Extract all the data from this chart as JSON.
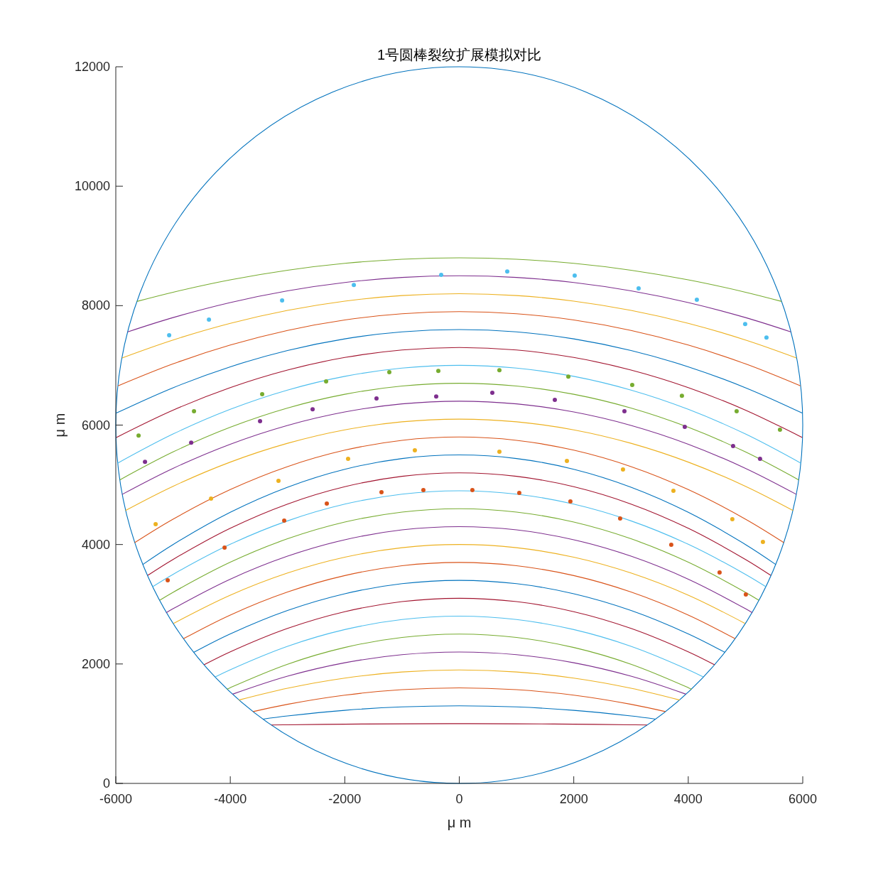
{
  "chart_data": {
    "type": "scatter",
    "title": "1号圆棒裂纹扩展模拟对比",
    "xlabel": "μ m",
    "ylabel": "μ m",
    "xlim": [
      -6000,
      6000
    ],
    "ylim": [
      0,
      12000
    ],
    "xticks": [
      -6000,
      -4000,
      -2000,
      0,
      2000,
      4000,
      6000
    ],
    "yticks": [
      0,
      2000,
      4000,
      6000,
      8000,
      10000,
      12000
    ],
    "grid": false,
    "series": [
      {
        "type": "line",
        "color": "#a2142f",
        "x": [
          -3280,
          -3000,
          -2000,
          -1000,
          0,
          1000,
          2000,
          3000,
          3280
        ],
        "values": [
          978,
          982,
          992,
          998,
          1000,
          998,
          992,
          982,
          978
        ]
      },
      {
        "type": "line",
        "color": "#0072bd",
        "x": [
          -3430,
          -3000,
          -2000,
          -1000,
          0,
          1000,
          2000,
          3000,
          3430
        ],
        "values": [
          1076,
          1129,
          1224,
          1281,
          1300,
          1281,
          1224,
          1129,
          1076
        ]
      },
      {
        "type": "line",
        "color": "#d95319",
        "x": [
          -3600,
          -3000,
          -2000,
          -1000,
          0,
          1000,
          2000,
          3000,
          3600
        ],
        "values": [
          1203,
          1325,
          1478,
          1569,
          1600,
          1569,
          1478,
          1325,
          1203
        ]
      },
      {
        "type": "line",
        "color": "#edb120",
        "x": [
          -3850,
          -3000,
          -2000,
          -1000,
          0,
          1000,
          2000,
          3000,
          3850
        ],
        "values": [
          1396,
          1594,
          1764,
          1866,
          1900,
          1866,
          1764,
          1594,
          1396
        ]
      },
      {
        "type": "line",
        "color": "#7e2f8e",
        "x": [
          -3960,
          -3000,
          -2000,
          -1000,
          0,
          1000,
          2000,
          3000,
          3960
        ],
        "values": [
          1494,
          1795,
          2020,
          2155,
          2200,
          2155,
          2020,
          1795,
          1494
        ]
      },
      {
        "type": "line",
        "color": "#77ac30",
        "x": [
          -4060,
          -4000,
          -3000,
          -2000,
          -1000,
          0,
          1000,
          2000,
          3000,
          4000,
          4060
        ],
        "values": [
          1577,
          1604,
          1996,
          2276,
          2444,
          2500,
          2444,
          2276,
          1996,
          1604,
          1577
        ]
      },
      {
        "type": "line",
        "color": "#4dbeee",
        "x": [
          -4260,
          -4000,
          -3000,
          -2000,
          -1000,
          0,
          1000,
          2000,
          3000,
          4000,
          4260
        ],
        "values": [
          1784,
          1904,
          2296,
          2576,
          2744,
          2800,
          2744,
          2576,
          2296,
          1904,
          1784
        ]
      },
      {
        "type": "line",
        "color": "#a2142f",
        "x": [
          -4460,
          -4000,
          -3000,
          -2000,
          -1000,
          0,
          1000,
          2000,
          3000,
          4000,
          4460
        ],
        "values": [
          1986,
          2204,
          2596,
          2876,
          3044,
          3100,
          3044,
          2876,
          2596,
          2204,
          1986
        ]
      },
      {
        "type": "line",
        "color": "#0072bd",
        "x": [
          -4640,
          -4000,
          -3000,
          -2000,
          -1000,
          0,
          1000,
          2000,
          3000,
          4000,
          4640
        ],
        "values": [
          2194,
          2504,
          2896,
          3176,
          3344,
          3400,
          3344,
          3176,
          2896,
          2504,
          2194
        ]
      },
      {
        "type": "line",
        "color": "#d95319",
        "x": [
          -4820,
          -4000,
          -3000,
          -2000,
          -1000,
          0,
          1000,
          2000,
          3000,
          4000,
          4820
        ],
        "values": [
          2422,
          2820,
          3205,
          3480,
          3645,
          3700,
          3645,
          3480,
          3205,
          2820,
          2422
        ]
      },
      {
        "type": "line",
        "color": "#edb120",
        "x": [
          -4990,
          -4000,
          -3000,
          -2000,
          -1000,
          0,
          1000,
          2000,
          3000,
          4000,
          4990
        ],
        "values": [
          2680,
          3152,
          3523,
          3788,
          3947,
          4000,
          3947,
          3788,
          3523,
          3152,
          2680
        ]
      },
      {
        "type": "line",
        "color": "#7e2f8e",
        "x": [
          -5120,
          -5000,
          -4000,
          -3000,
          -2000,
          -1000,
          0,
          1000,
          2000,
          3000,
          4000,
          5000,
          5120
        ],
        "values": [
          2858,
          2925,
          3420,
          3805,
          4080,
          4245,
          4300,
          4245,
          4080,
          3805,
          3420,
          2925,
          2858
        ]
      },
      {
        "type": "line",
        "color": "#77ac30",
        "x": [
          -5230,
          -5000,
          -4000,
          -3000,
          -2000,
          -1000,
          0,
          1000,
          2000,
          3000,
          4000,
          5000,
          5230
        ],
        "values": [
          3068,
          3200,
          3704,
          4096,
          4376,
          4544,
          4600,
          4544,
          4376,
          4096,
          3704,
          3200,
          3068
        ]
      },
      {
        "type": "line",
        "color": "#4dbeee",
        "x": [
          -5360,
          -5000,
          -4000,
          -3000,
          -2000,
          -1000,
          0,
          1000,
          2000,
          3000,
          4000,
          5000,
          5360
        ],
        "values": [
          3291,
          3500,
          4004,
          4396,
          4676,
          4844,
          4900,
          4844,
          4676,
          4396,
          4004,
          3500,
          3291
        ]
      },
      {
        "type": "line",
        "color": "#a2142f",
        "x": [
          -5440,
          -5000,
          -4000,
          -3000,
          -2000,
          -1000,
          0,
          1000,
          2000,
          3000,
          4000,
          5000,
          5440
        ],
        "values": [
          3484,
          3750,
          4272,
          4678,
          4968,
          5142,
          5200,
          5142,
          4968,
          4678,
          4272,
          3750,
          3484
        ]
      },
      {
        "type": "line",
        "color": "#0072bd",
        "x": [
          -5530,
          -5000,
          -4000,
          -3000,
          -2000,
          -1000,
          0,
          1000,
          2000,
          3000,
          4000,
          5000,
          5530
        ],
        "values": [
          3665,
          4000,
          4540,
          4960,
          5260,
          5440,
          5500,
          5440,
          5260,
          4960,
          4540,
          4000,
          3665
        ]
      },
      {
        "type": "line",
        "color": "#d95319",
        "x": [
          -5670,
          -5000,
          -4000,
          -3000,
          -2000,
          -1000,
          0,
          1000,
          2000,
          3000,
          4000,
          5000,
          5670
        ],
        "values": [
          4032,
          4425,
          4920,
          5305,
          5580,
          5745,
          5800,
          5745,
          5580,
          5305,
          4920,
          4425,
          4032
        ]
      },
      {
        "type": "line",
        "color": "#edb120",
        "x": [
          -5830,
          -5000,
          -4000,
          -3000,
          -2000,
          -1000,
          0,
          1000,
          2000,
          3000,
          4000,
          5000,
          5830
        ],
        "values": [
          4570,
          4975,
          5380,
          5695,
          5920,
          6055,
          6100,
          6055,
          5920,
          5695,
          5380,
          4975,
          4570
        ]
      },
      {
        "type": "line",
        "color": "#7e2f8e",
        "x": [
          -5890,
          -5000,
          -4000,
          -3000,
          -2000,
          -1000,
          0,
          1000,
          2000,
          3000,
          4000,
          5000,
          5890
        ],
        "values": [
          4839,
          5275,
          5680,
          5995,
          6220,
          6355,
          6400,
          6355,
          6220,
          5995,
          5680,
          5275,
          4839
        ]
      },
      {
        "type": "line",
        "color": "#77ac30",
        "x": [
          -5930,
          -5000,
          -4000,
          -3000,
          -2000,
          -1000,
          0,
          1000,
          2000,
          3000,
          4000,
          5000,
          5930
        ],
        "values": [
          5082,
          5550,
          5964,
          6286,
          6516,
          6654,
          6700,
          6654,
          6516,
          6286,
          5964,
          5550,
          5082
        ]
      },
      {
        "type": "line",
        "color": "#4dbeee",
        "x": [
          -5970,
          -5000,
          -4000,
          -3000,
          -2000,
          -1000,
          0,
          1000,
          2000,
          3000,
          4000,
          5000,
          5970
        ],
        "values": [
          5361,
          5850,
          6264,
          6586,
          6816,
          6954,
          7000,
          6954,
          6816,
          6586,
          6264,
          5850,
          5361
        ]
      },
      {
        "type": "line",
        "color": "#a2142f",
        "x": [
          -5990,
          -5000,
          -4000,
          -3000,
          -2000,
          -1000,
          0,
          1000,
          2000,
          3000,
          4000,
          5000,
          5990
        ],
        "values": [
          5793,
          6250,
          6628,
          6922,
          7132,
          7258,
          7300,
          7258,
          7132,
          6922,
          6628,
          6250,
          5793
        ]
      },
      {
        "type": "line",
        "color": "#0072bd",
        "x": [
          -5990,
          -5000,
          -4000,
          -3000,
          -2000,
          -1000,
          0,
          1000,
          2000,
          3000,
          4000,
          5000,
          5990
        ],
        "values": [
          6201,
          6625,
          6976,
          7249,
          7444,
          7561,
          7600,
          7561,
          7444,
          7249,
          6976,
          6625,
          6201
        ]
      },
      {
        "type": "line",
        "color": "#d95319",
        "x": [
          -5960,
          -5000,
          -4000,
          -3000,
          -2000,
          -1000,
          0,
          1000,
          2000,
          3000,
          4000,
          5000,
          5960
        ],
        "values": [
          6657,
          7025,
          7340,
          7585,
          7760,
          7865,
          7900,
          7865,
          7760,
          7585,
          7340,
          7025,
          6657
        ]
      },
      {
        "type": "line",
        "color": "#edb120",
        "x": [
          -5890,
          -5000,
          -4000,
          -3000,
          -2000,
          -1000,
          0,
          1000,
          2000,
          3000,
          4000,
          5000,
          5890
        ],
        "values": [
          7125,
          7425,
          7704,
          7921,
          8076,
          8169,
          8200,
          8169,
          8076,
          7921,
          7704,
          7425,
          7125
        ]
      },
      {
        "type": "line",
        "color": "#7e2f8e",
        "x": [
          -5790,
          -5000,
          -4000,
          -3000,
          -2000,
          -1000,
          0,
          1000,
          2000,
          3000,
          4000,
          5000,
          5790
        ],
        "values": [
          7561,
          7800,
          8052,
          8248,
          8388,
          8472,
          8500,
          8472,
          8388,
          8248,
          8052,
          7800,
          7561
        ]
      },
      {
        "type": "line",
        "color": "#77ac30",
        "x": [
          -5630,
          -5000,
          -4000,
          -3000,
          -2000,
          -1000,
          0,
          1000,
          2000,
          3000,
          4000,
          5000,
          5630
        ],
        "values": [
          8071,
          8225,
          8432,
          8593,
          8708,
          8777,
          8800,
          8777,
          8708,
          8593,
          8432,
          8225,
          8071
        ]
      },
      {
        "marker": "circle",
        "color": "#4dbeee",
        "x": [
          -5068,
          -4373,
          -3095,
          -1842,
          -316,
          838,
          2016,
          3133,
          4150,
          4994,
          5366
        ],
        "values": [
          7503,
          7765,
          8086,
          8347,
          8514,
          8573,
          8502,
          8288,
          8098,
          7693,
          7467
        ]
      },
      {
        "marker": "circle",
        "color": "#77ac30",
        "x": [
          -5602,
          -4634,
          -3443,
          -2326,
          -1222,
          -366,
          701,
          1905,
          3021,
          3889,
          4845,
          5602
        ],
        "values": [
          5826,
          6231,
          6516,
          6730,
          6885,
          6908,
          6920,
          6813,
          6671,
          6492,
          6231,
          5922
        ]
      },
      {
        "marker": "circle",
        "color": "#7e2f8e",
        "x": [
          -5490,
          -4683,
          -3480,
          -2562,
          -1446,
          -403,
          577,
          1669,
          2885,
          3939,
          4783,
          5254
        ],
        "values": [
          5386,
          5707,
          6064,
          6266,
          6445,
          6480,
          6540,
          6421,
          6231,
          5969,
          5648,
          5434
        ]
      },
      {
        "marker": "circle",
        "color": "#edb120",
        "x": [
          -5304,
          -4336,
          -3158,
          -1942,
          -776,
          701,
          1880,
          2860,
          3741,
          4770,
          5304
        ],
        "values": [
          4340,
          4768,
          5065,
          5434,
          5577,
          5553,
          5398,
          5256,
          4899,
          4423,
          4043
        ]
      },
      {
        "marker": "circle",
        "color": "#d95319",
        "x": [
          -5093,
          -4100,
          -3058,
          -2314,
          -1359,
          -627,
          229,
          1048,
          1941,
          2810,
          3703,
          4547,
          5006
        ],
        "values": [
          3401,
          3948,
          4400,
          4685,
          4875,
          4911,
          4911,
          4863,
          4721,
          4435,
          3995,
          3532,
          3163
        ]
      }
    ]
  }
}
